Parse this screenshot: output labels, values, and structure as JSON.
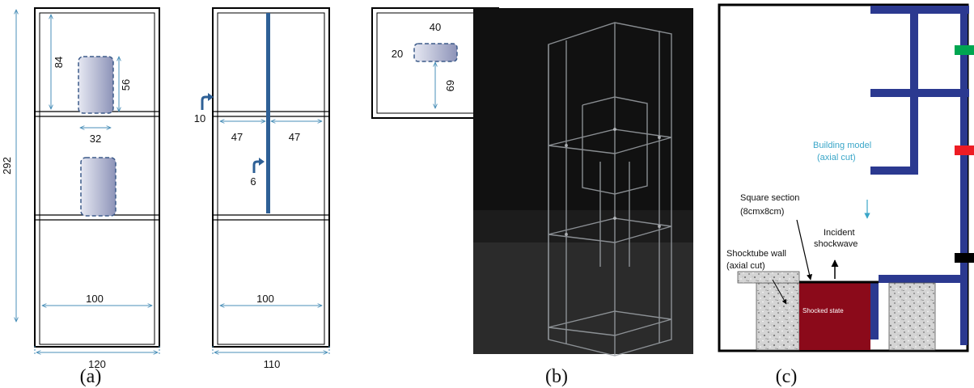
{
  "panels": {
    "a": "(a)",
    "b": "(b)",
    "c": "(c)"
  },
  "front_view": {
    "height": "292",
    "upper_height": "84",
    "window_height": "56",
    "window_width": "32",
    "inner_width": "100",
    "outer_width": "120"
  },
  "side_view": {
    "marker_upper": "10",
    "marker_lower": "6",
    "half_left": "47",
    "half_right": "47",
    "inner_width": "100",
    "outer_width": "110"
  },
  "top_view": {
    "width": "40",
    "depth": "20",
    "offset": "69"
  },
  "schematic": {
    "building_label_1": "Building model",
    "building_label_2": "(axial cut)",
    "square_label_1": "Square section",
    "square_label_2": "(8cmx8cm)",
    "incident_label_1": "Incident",
    "incident_label_2": "shockwave",
    "wall_label_1": "Shocktube wall",
    "wall_label_2": "(axial cut)",
    "shocked_label": "Shocked state",
    "colors": {
      "frame": "#2b3990",
      "shocked": "#8b0a1a",
      "sensor_green": "#00a651",
      "sensor_red": "#ed1c24",
      "sensor_black": "#000000",
      "annotation": "#3aa6c8"
    }
  }
}
